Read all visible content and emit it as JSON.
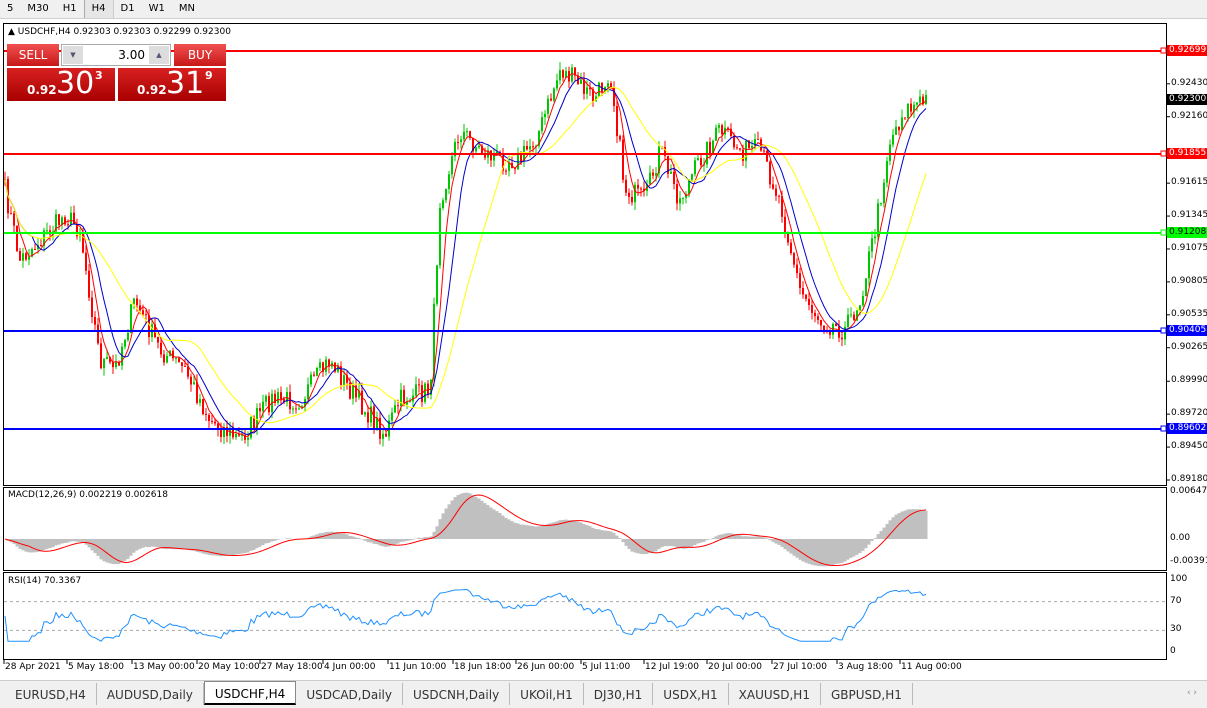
{
  "timeframes": [
    "5",
    "M30",
    "H1",
    "H4",
    "D1",
    "W1",
    "MN"
  ],
  "active_timeframe": "H4",
  "chart": {
    "header": "USDCHF,H4  0.92303 0.92303 0.92299 0.92300",
    "trade_panel": {
      "sell_label": "SELL",
      "buy_label": "BUY",
      "volume": "3.00",
      "sell_prefix": "0.92",
      "sell_big": "30",
      "sell_sup": "3",
      "buy_prefix": "0.92",
      "buy_big": "31",
      "buy_sup": "9"
    },
    "price_scale": [
      "0.92430",
      "0.92160",
      "0.91615",
      "0.91345",
      "0.91075",
      "0.90805",
      "0.90535",
      "0.90265",
      "0.89990",
      "0.89720",
      "0.89450",
      "0.89180"
    ],
    "levels": [
      {
        "price": "0.92699",
        "color": "#ff0000"
      },
      {
        "price": "0.91855",
        "color": "#ff0000"
      },
      {
        "price": "0.91208",
        "color": "#00ff00"
      },
      {
        "price": "0.90405",
        "color": "#0000ff"
      },
      {
        "price": "0.89602",
        "color": "#0000ff"
      }
    ],
    "current_price": "0.92300",
    "up_color": "#00c800",
    "down_color": "#ff0000"
  },
  "macd": {
    "label": "MACD(12,26,9) 0.002219 0.002618",
    "scale": [
      "0.00647",
      "0.00",
      "-0.00391"
    ]
  },
  "rsi": {
    "label": "RSI(14) 70.3367",
    "scale": [
      "100",
      "70",
      "30",
      "0"
    ]
  },
  "time_axis": [
    "28 Apr 2021",
    "5 May 18:00",
    "13 May 00:00",
    "20 May 10:00",
    "27 May 18:00",
    "4 Jun 00:00",
    "11 Jun 10:00",
    "18 Jun 18:00",
    "26 Jun 00:00",
    "5 Jul 11:00",
    "12 Jul 19:00",
    "20 Jul 00:00",
    "27 Jul 10:00",
    "3 Aug 18:00",
    "11 Aug 00:00"
  ],
  "tabs": [
    "EURUSD,H4",
    "AUDUSD,Daily",
    "USDCHF,H4",
    "USDCAD,Daily",
    "USDCNH,Daily",
    "UKOil,H1",
    "DJ30,H1",
    "USDX,H1",
    "XAUUSD,H1",
    "GBPUSD,H1"
  ],
  "active_tab": "USDCHF,H4"
}
